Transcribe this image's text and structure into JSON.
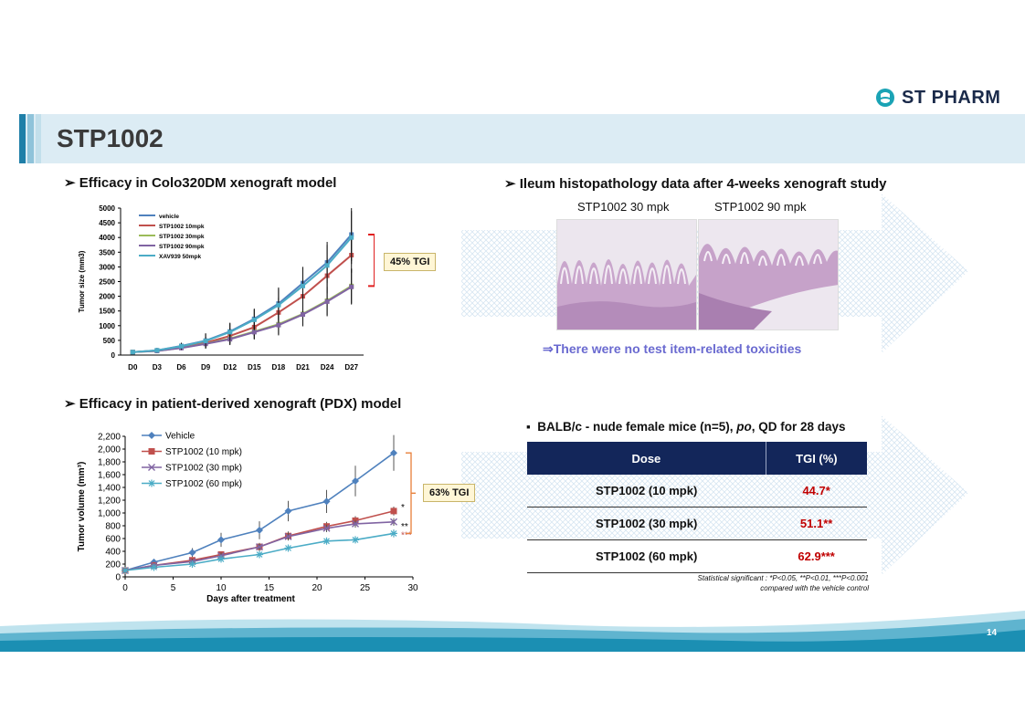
{
  "logo": {
    "text": "ST PHARM"
  },
  "title": "STP1002",
  "sections": {
    "colo": "Efficacy in Colo320DM xenograft model",
    "pdx": "Efficacy in patient-derived xenograft (PDX) model",
    "ileum": "Ileum histopathology data after 4-weeks xenograft study"
  },
  "histology": {
    "left_label": "STP1002 30 mpk",
    "right_label": "STP1002 90 mpk",
    "note": "⇒There were no test item-related toxicities"
  },
  "bullet": {
    "pre": "BALB/c - nude female mice (n=5), ",
    "po": "po",
    "post": ", QD for 28 days"
  },
  "table": {
    "headers": [
      "Dose",
      "TGI (%)"
    ],
    "rows": [
      {
        "dose": "STP1002 (10 mpk)",
        "tgi": "44.7*"
      },
      {
        "dose": "STP1002 (30 mpk)",
        "tgi": "51.1**"
      },
      {
        "dose": "STP1002 (60 mpk)",
        "tgi": "62.9***"
      }
    ]
  },
  "stat_note": {
    "line1": "Statistical significant : *P<0.05, **P<0.01, ***P<0.001",
    "line2": "compared with the vehicle control"
  },
  "page_number": "14",
  "colors": {
    "vehicle": "#4f81bd",
    "c10": "#c0504d",
    "c30": "#9bbb59",
    "c90": "#8064a2",
    "xav": "#4bacc6",
    "bracket": "#e02020"
  },
  "chart_data": [
    {
      "type": "line",
      "title": "",
      "ylabel": "Tumor size (mm3)",
      "xlabel": "",
      "categories": [
        "D0",
        "D3",
        "D6",
        "D9",
        "D12",
        "D15",
        "D18",
        "D21",
        "D24",
        "D27"
      ],
      "ylim": [
        0,
        5000
      ],
      "yticks": [
        0,
        500,
        1000,
        1500,
        2000,
        2500,
        3000,
        3500,
        4000,
        4500,
        5000
      ],
      "series": [
        {
          "name": "vehicle",
          "color": "#4f81bd",
          "values": [
            100,
            160,
            310,
            490,
            800,
            1230,
            1750,
            2450,
            3150,
            4100
          ],
          "err": [
            50,
            80,
            110,
            250,
            300,
            350,
            550,
            550,
            700,
            900
          ]
        },
        {
          "name": "STP1002 10mpk",
          "color": "#c0504d",
          "values": [
            100,
            150,
            270,
            420,
            650,
            950,
            1450,
            2000,
            2700,
            3400
          ],
          "err": [
            40,
            70,
            90,
            200,
            250,
            300,
            500,
            500,
            600,
            600
          ]
        },
        {
          "name": "STP1002 30mpk",
          "color": "#9bbb59",
          "values": [
            100,
            140,
            250,
            390,
            560,
            800,
            1050,
            1400,
            1850,
            2350
          ],
          "err": [
            40,
            60,
            80,
            150,
            200,
            250,
            350,
            400,
            500,
            600
          ]
        },
        {
          "name": "STP1002 90mpk",
          "color": "#8064a2",
          "values": [
            100,
            140,
            240,
            380,
            540,
            780,
            1020,
            1380,
            1820,
            2320
          ],
          "err": [
            40,
            60,
            80,
            150,
            200,
            250,
            350,
            400,
            500,
            600
          ]
        },
        {
          "name": "XAV939 50mpk",
          "color": "#4bacc6",
          "values": [
            100,
            160,
            300,
            480,
            780,
            1200,
            1700,
            2350,
            3050,
            4000
          ],
          "err": [
            50,
            80,
            110,
            250,
            300,
            350,
            550,
            550,
            700,
            900
          ]
        }
      ],
      "annotation": "45% TGI"
    },
    {
      "type": "line",
      "title": "",
      "ylabel": "Tumor volume (mm³)",
      "xlabel": "Days after treatment",
      "xlim": [
        0,
        30
      ],
      "xticks": [
        0,
        5,
        10,
        15,
        20,
        25,
        30
      ],
      "ylim": [
        0,
        2200
      ],
      "yticks": [
        0,
        200,
        400,
        600,
        800,
        1000,
        1200,
        1400,
        1600,
        1800,
        2000,
        2200
      ],
      "series": [
        {
          "name": "Vehicle",
          "color": "#4f81bd",
          "marker": "diamond",
          "x": [
            0,
            3,
            7,
            10,
            14,
            17,
            21,
            24,
            28
          ],
          "values": [
            100,
            230,
            380,
            580,
            730,
            1030,
            1180,
            1500,
            1940
          ],
          "err": [
            20,
            40,
            70,
            110,
            140,
            160,
            180,
            240,
            280
          ]
        },
        {
          "name": "STP1002 (10 mpk)",
          "color": "#c0504d",
          "marker": "square",
          "x": [
            0,
            3,
            7,
            10,
            14,
            17,
            21,
            24,
            28
          ],
          "values": [
            100,
            180,
            260,
            350,
            470,
            640,
            790,
            880,
            1030
          ],
          "err": [
            20,
            30,
            40,
            50,
            60,
            70,
            70,
            70,
            70
          ]
        },
        {
          "name": "STP1002 (30 mpk)",
          "color": "#8064a2",
          "marker": "x",
          "x": [
            0,
            3,
            7,
            10,
            14,
            17,
            21,
            24,
            28
          ],
          "values": [
            100,
            180,
            240,
            330,
            470,
            630,
            760,
            830,
            860
          ],
          "err": [
            20,
            30,
            40,
            50,
            60,
            60,
            60,
            60,
            60
          ]
        },
        {
          "name": "STP1002 (60 mpk)",
          "color": "#4bacc6",
          "marker": "star",
          "x": [
            0,
            3,
            7,
            10,
            14,
            17,
            21,
            24,
            28
          ],
          "values": [
            100,
            150,
            200,
            280,
            350,
            450,
            560,
            580,
            680
          ],
          "err": [
            20,
            30,
            40,
            40,
            40,
            40,
            50,
            50,
            60
          ]
        }
      ],
      "significance": [
        "*",
        "**",
        "***"
      ],
      "annotation": "63% TGI"
    }
  ]
}
